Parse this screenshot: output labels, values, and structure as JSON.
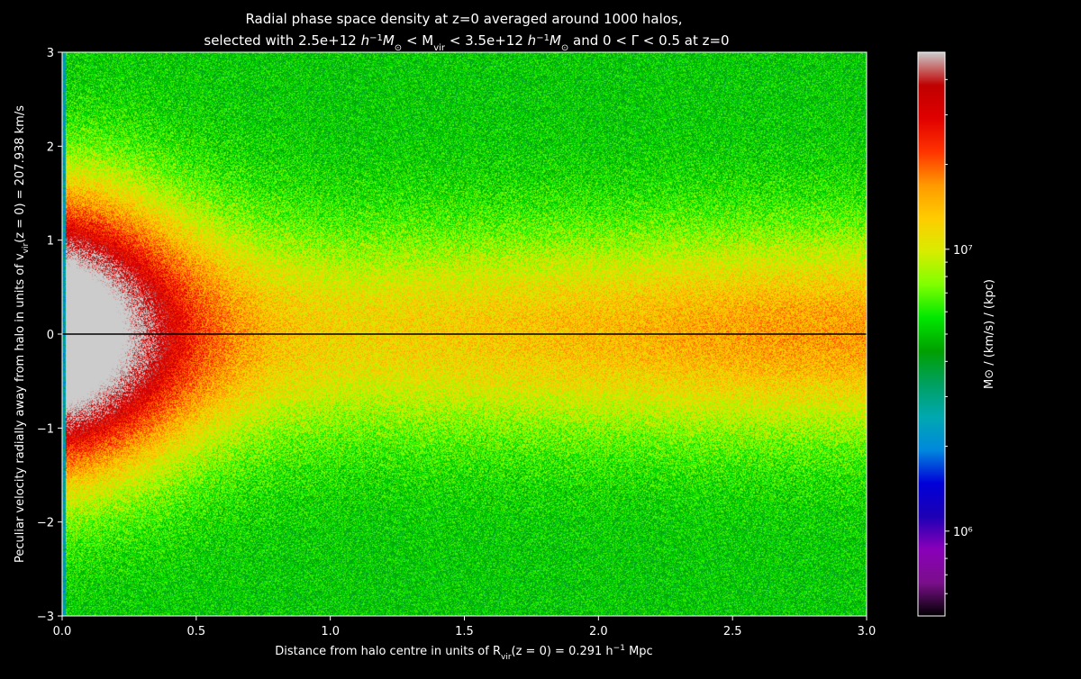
{
  "chart_data": {
    "type": "heatmap",
    "title_line1": "Radial phase space density at z=0 averaged around 1000 halos,",
    "title_line2_prefix": "selected with 2.5e+12 ",
    "title_line2_mid1": " < M",
    "title_line2_sub": "vir",
    "title_line2_mid2": " < 3.5e+12 ",
    "title_line2_suffix": " and 0 < Γ < 0.5 at z=0",
    "xlabel_prefix": "Distance from halo centre in units of  R",
    "xlabel_sub": "vir",
    "xlabel_suffix": "(z = 0) = 0.291 h",
    "xlabel_sup": "−1",
    "xlabel_unit": " Mpc",
    "ylabel_prefix": "Peculiar velocity radially away from halo in units of  v",
    "ylabel_sub": "vir",
    "ylabel_suffix": "(z = 0) = 207.938 km/s",
    "xlim": [
      0,
      3
    ],
    "ylim": [
      -3,
      3
    ],
    "x_ticks": [
      0.0,
      0.5,
      1.0,
      1.5,
      2.0,
      2.5,
      3.0
    ],
    "x_tick_labels": [
      "0.0",
      "0.5",
      "1.0",
      "1.5",
      "2.0",
      "2.5",
      "3.0"
    ],
    "y_ticks": [
      -3,
      -2,
      -1,
      0,
      1,
      2,
      3
    ],
    "y_tick_labels": [
      "−3",
      "−2",
      "−1",
      "0",
      "1",
      "2",
      "3"
    ],
    "reference_line_y": 0,
    "colorbar": {
      "label": "M⊙ / (km/s) / (kpc)",
      "scale": "log",
      "range": [
        500000,
        50000000
      ],
      "tick_values": [
        1000000,
        10000000
      ],
      "tick_labels": [
        "10⁶",
        "10⁷"
      ],
      "colormap": [
        "#000000",
        "#7a0f8a",
        "#8a00b8",
        "#1d00b5",
        "#0000d8",
        "#0088dd",
        "#00a8b0",
        "#00a060",
        "#00a000",
        "#00e800",
        "#80ff00",
        "#d8ec00",
        "#ffcc00",
        "#ff9900",
        "#ff3300",
        "#e00000",
        "#c00000",
        "#cccccc"
      ]
    },
    "grid": false,
    "density_description_units": "log10 of colorbar units",
    "density_model": {
      "core_peak_log10": 7.85,
      "core_x_width": 0.45,
      "core_v_width": 1.5,
      "ridge_log10": 7.2,
      "ridge_v_width": 1.1,
      "background_log10": 6.7
    }
  }
}
